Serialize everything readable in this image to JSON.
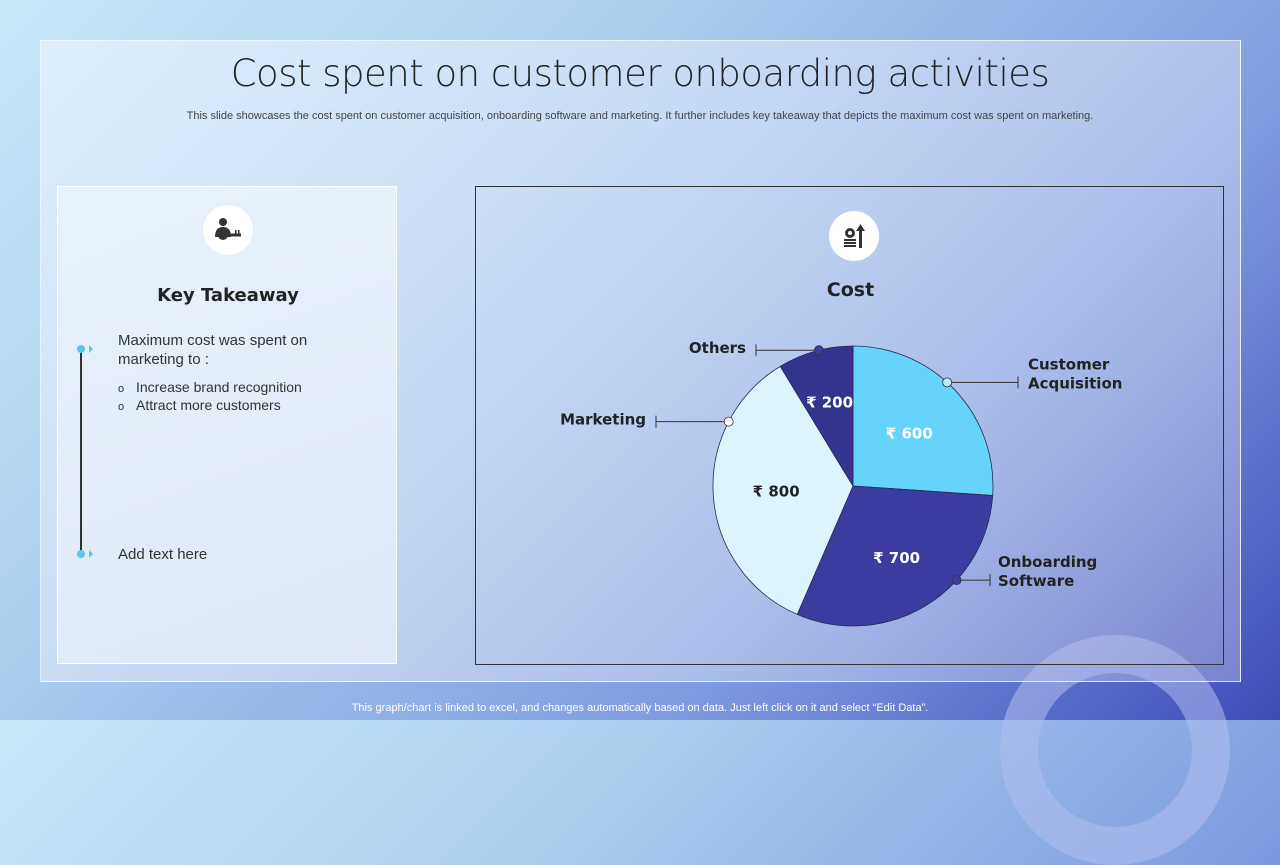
{
  "title": "Cost spent on customer onboarding activities",
  "subtitle": "This slide showcases the cost spent on customer acquisition, onboarding software and marketing. It further includes key takeaway that depicts the maximum cost was spent on marketing.",
  "takeaway": {
    "heading": "Key Takeaway",
    "main": "Maximum cost was spent on marketing to :",
    "bullets": [
      "Increase brand recognition",
      "Attract more customers"
    ],
    "extra": "Add text here",
    "icon": "user-key-icon"
  },
  "footer": "This graph/chart is linked to excel, and changes automatically based on data. Just left click on it and select “Edit Data”.",
  "chart_data": {
    "type": "pie",
    "title": "Cost",
    "icon": "money-growth-icon",
    "categories": [
      "Customer Acquisition",
      "Onboarding Software",
      "Marketing",
      "Others"
    ],
    "values": [
      600,
      700,
      800,
      200
    ],
    "value_labels": [
      "₹ 600",
      "₹ 700",
      "₹ 800",
      "₹ 200"
    ],
    "colors": [
      "#66d4fa",
      "#3c3ca0",
      "#ddf3fd",
      "#34348f"
    ],
    "label_colors": [
      "#ffffff",
      "#ffffff",
      "#222222",
      "#ffffff"
    ],
    "legend": "callouts"
  }
}
